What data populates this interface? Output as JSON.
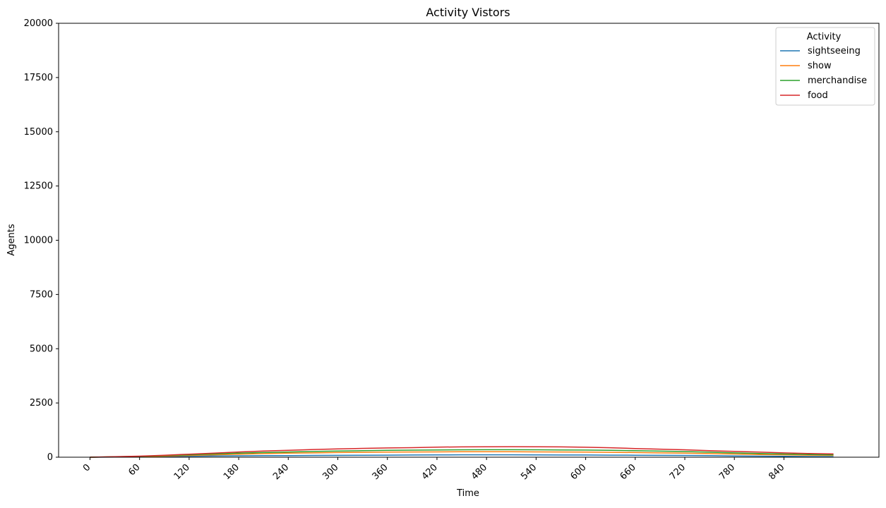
{
  "chart_data": {
    "type": "line",
    "title": "Activity Vistors",
    "xlabel": "Time",
    "ylabel": "Agents",
    "xlim": [
      -38,
      955
    ],
    "ylim": [
      0,
      20000
    ],
    "x_ticks": [
      0,
      60,
      120,
      180,
      240,
      300,
      360,
      420,
      480,
      540,
      600,
      660,
      720,
      780,
      840
    ],
    "y_ticks": [
      0,
      2500,
      5000,
      7500,
      10000,
      12500,
      15000,
      17500,
      20000
    ],
    "legend": {
      "title": "Activity",
      "position": "top-right"
    },
    "grid": false,
    "x": [
      0,
      30,
      60,
      90,
      120,
      150,
      180,
      210,
      240,
      270,
      300,
      330,
      360,
      390,
      420,
      450,
      480,
      510,
      540,
      570,
      600,
      630,
      660,
      690,
      720,
      750,
      780,
      810,
      840,
      870,
      900
    ],
    "series": [
      {
        "name": "sightseeing",
        "color": "#1f77b4",
        "values": [
          0,
          10,
          20,
          30,
          45,
          55,
          65,
          70,
          75,
          80,
          85,
          90,
          95,
          100,
          105,
          110,
          110,
          110,
          105,
          100,
          100,
          95,
          90,
          85,
          80,
          70,
          60,
          50,
          40,
          30,
          25
        ]
      },
      {
        "name": "show",
        "color": "#ff7f0e",
        "values": [
          0,
          15,
          30,
          50,
          80,
          110,
          140,
          165,
          185,
          200,
          215,
          225,
          235,
          240,
          245,
          250,
          250,
          250,
          245,
          240,
          235,
          225,
          215,
          200,
          185,
          165,
          145,
          125,
          110,
          95,
          85
        ]
      },
      {
        "name": "merchandise",
        "color": "#2ca02c",
        "values": [
          0,
          20,
          40,
          70,
          110,
          150,
          185,
          215,
          240,
          265,
          285,
          300,
          315,
          325,
          335,
          340,
          345,
          345,
          340,
          335,
          330,
          315,
          300,
          280,
          260,
          230,
          200,
          170,
          145,
          125,
          110
        ]
      },
      {
        "name": "food",
        "color": "#d62728",
        "values": [
          0,
          25,
          50,
          90,
          140,
          190,
          240,
          285,
          320,
          355,
          385,
          405,
          425,
          440,
          465,
          475,
          480,
          485,
          480,
          475,
          460,
          435,
          400,
          370,
          340,
          300,
          270,
          235,
          200,
          170,
          150
        ]
      }
    ]
  }
}
